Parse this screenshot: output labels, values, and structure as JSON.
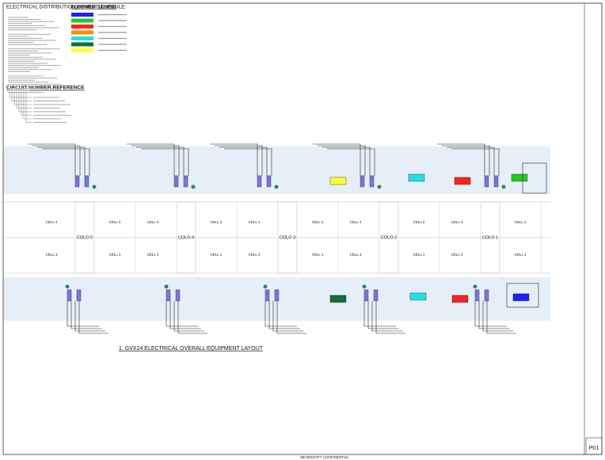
{
  "header": {
    "schedule_title": "ELECTRICAL DISTRIBUTION BOARD SCHEDULE:",
    "legend_title": "EQUIPMENT LEGEND",
    "reference_title": "CIRCUIT NUMBER REFERENCE"
  },
  "legend": {
    "colors": [
      "#1f1fff",
      "#22cc22",
      "#ff2020",
      "#ff8c00",
      "#22e0e0",
      "#11703a",
      "#ffff33"
    ]
  },
  "cells": {
    "top": [
      "CELL 4",
      "CELL 2",
      "CELL 4",
      "CELL 2",
      "CELL 4",
      "CELL 2",
      "CELL 4",
      "CELL 2",
      "CELL 4",
      "CELL 2"
    ],
    "bottom": [
      "CELL 3",
      "CELL 1",
      "CELL 3",
      "CELL 1",
      "CELL 3",
      "CELL 1",
      "CELL 3",
      "CELL 1",
      "CELL 3",
      "CELL 1"
    ]
  },
  "colos": [
    "COLO 5",
    "COLO 4",
    "COLO 3",
    "COLO 2",
    "COLO 1"
  ],
  "drawing_title": "1. GVX24 ELECTRICAL OVERALL EQUIPMENT LAYOUT",
  "footer": "MICROSOFT CONFIDENTIAL",
  "sheet": "P01"
}
